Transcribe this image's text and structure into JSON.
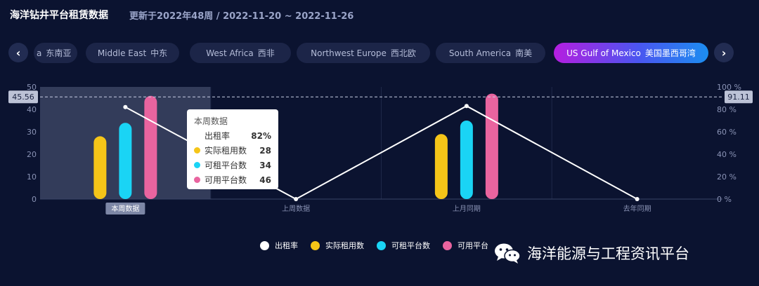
{
  "header": {
    "title": "海洋钻井平台租赁数据",
    "subtitle": "更新于2022年48周 / 2022-11-20 ~ 2022-11-26"
  },
  "regions": {
    "prev_icon": "chevron-left-icon",
    "next_icon": "chevron-right-icon",
    "items": [
      {
        "en": "a",
        "zh": "东南亚"
      },
      {
        "en": "Middle East",
        "zh": "中东"
      },
      {
        "en": "West Africa",
        "zh": "西非"
      },
      {
        "en": "Northwest Europe",
        "zh": "西北欧"
      },
      {
        "en": "South America",
        "zh": "南美"
      },
      {
        "en": "US Gulf of Mexico",
        "zh": "美国墨西哥湾",
        "active": true
      }
    ]
  },
  "chart_data": {
    "type": "bar",
    "categories": [
      "本周数据",
      "上周数据",
      "上月同期",
      "去年同期"
    ],
    "series": [
      {
        "name": "实际租用数",
        "kind": "bar",
        "axis": "left",
        "color": "#f5c518",
        "values": [
          28,
          0,
          29,
          0
        ]
      },
      {
        "name": "可租平台数",
        "kind": "bar",
        "axis": "left",
        "color": "#1ad4f5",
        "values": [
          34,
          0,
          35,
          0
        ]
      },
      {
        "name": "可用平台数",
        "kind": "bar",
        "axis": "left",
        "color": "#e9649f",
        "values": [
          46,
          0,
          47,
          0
        ]
      },
      {
        "name": "出租率",
        "kind": "line",
        "axis": "right",
        "color": "#ffffff",
        "values": [
          82,
          0,
          83,
          0
        ]
      }
    ],
    "left_axis": {
      "min": 0,
      "max": 50,
      "ticks": [
        "0",
        "10",
        "20",
        "30",
        "40",
        "50"
      ]
    },
    "right_axis": {
      "min": 0,
      "max": 100,
      "ticks": [
        "0 %",
        "20 %",
        "40 %",
        "60 %",
        "80 %",
        "100 %"
      ]
    },
    "crosshair": {
      "left_label": "45.56",
      "right_label": "91.11"
    },
    "highlighted_category": "本周数据",
    "legend": {
      "placement": "bottom",
      "items": [
        {
          "name": "出租率",
          "color": "#ffffff"
        },
        {
          "name": "实际租用数",
          "color": "#f5c518"
        },
        {
          "name": "可租平台数",
          "color": "#1ad4f5"
        },
        {
          "name": "可用平台",
          "color": "#e9649f"
        }
      ]
    },
    "tooltip": {
      "title": "本周数据",
      "rows": [
        {
          "label": "出租率",
          "value": "82%",
          "color": ""
        },
        {
          "label": "实际租用数",
          "value": "28",
          "color": "#f5c518"
        },
        {
          "label": "可租平台数",
          "value": "34",
          "color": "#1ad4f5"
        },
        {
          "label": "可用平台数",
          "value": "46",
          "color": "#e9649f"
        }
      ]
    }
  },
  "watermark": {
    "text": "海洋能源与工程资讯平台",
    "icon": "wechat-icon"
  }
}
